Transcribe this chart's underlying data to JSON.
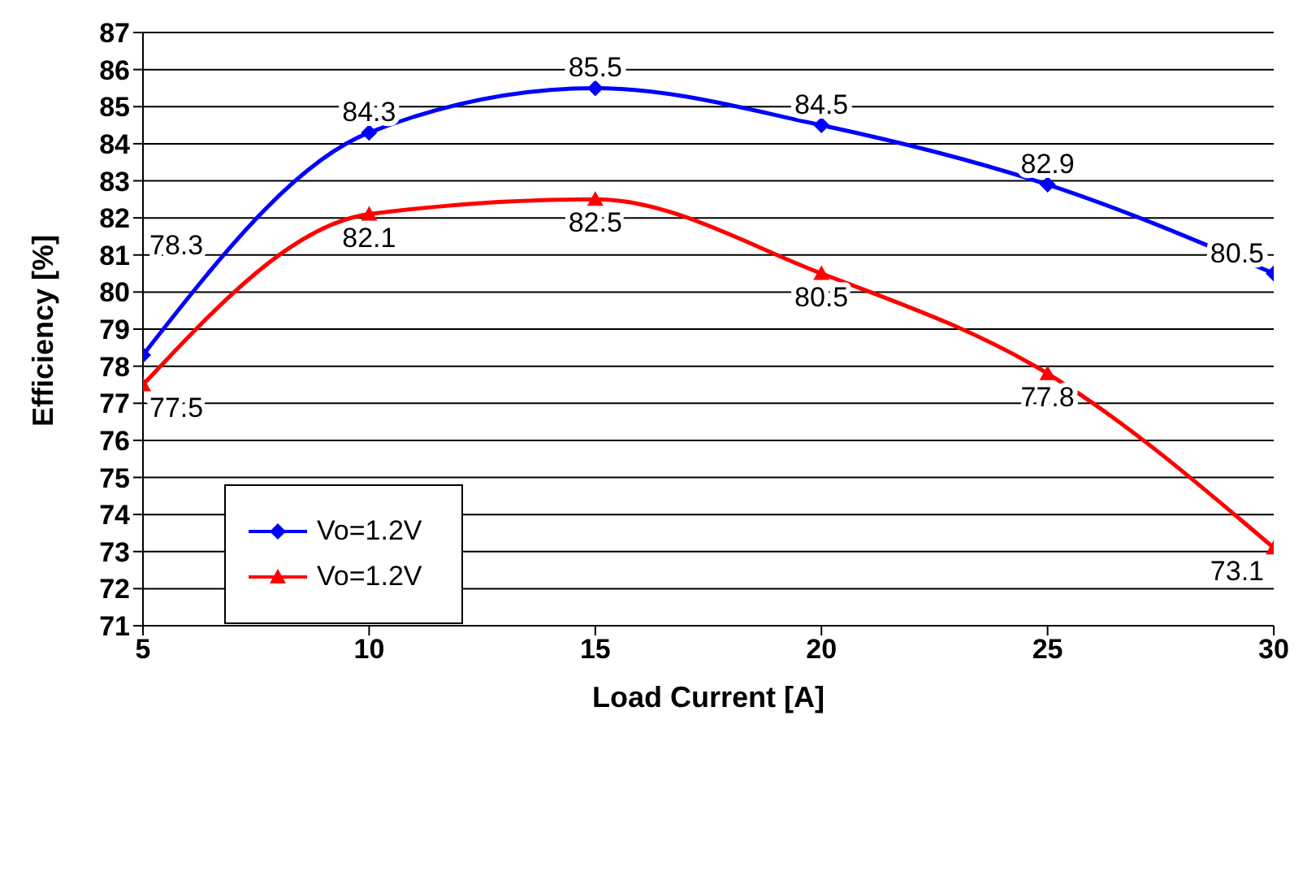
{
  "chart_data": {
    "type": "line",
    "xlabel": "Load Current [A]",
    "ylabel": "Efficiency [%]",
    "x": [
      5,
      10,
      15,
      20,
      25,
      30
    ],
    "series": [
      {
        "name": "Vo=1.2V",
        "color": "#0000ff",
        "marker": "diamond",
        "values": [
          78.3,
          84.3,
          85.5,
          84.5,
          82.9,
          80.5
        ]
      },
      {
        "name": "Vo=1.2V",
        "color": "#ff0000",
        "marker": "triangle",
        "values": [
          77.5,
          82.1,
          82.5,
          80.5,
          77.8,
          73.1
        ]
      }
    ],
    "xlim": [
      5,
      30
    ],
    "xticks": [
      5,
      10,
      15,
      20,
      25,
      30
    ],
    "ylim": [
      71,
      87
    ],
    "yticks": [
      71,
      72,
      73,
      74,
      75,
      76,
      77,
      78,
      79,
      80,
      81,
      82,
      83,
      84,
      85,
      86,
      87
    ],
    "grid": "y",
    "legend": "bottom left",
    "data_labels": true,
    "line_style": "solid"
  }
}
